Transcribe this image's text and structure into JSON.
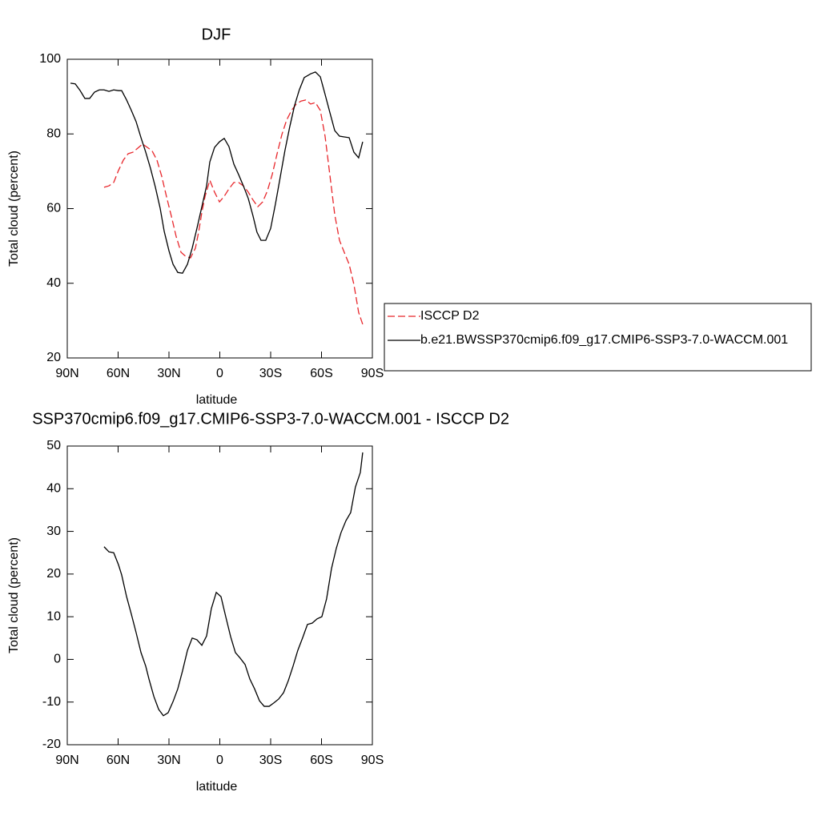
{
  "chart_data": [
    {
      "type": "line",
      "title": "DJF",
      "xlabel": "latitude",
      "ylabel": "Total cloud (percent)",
      "xlim": [
        90,
        -90
      ],
      "xticks": [
        {
          "value": 90,
          "label": "90N"
        },
        {
          "value": 60,
          "label": "60N"
        },
        {
          "value": 30,
          "label": "30N"
        },
        0,
        {
          "value": -30,
          "label": "30S"
        },
        {
          "value": -60,
          "label": "60S"
        },
        {
          "value": -90,
          "label": "90S"
        }
      ],
      "ylim": [
        20,
        100
      ],
      "yticks": [
        20,
        40,
        60,
        80,
        100
      ],
      "legend": "right",
      "series": [
        {
          "name": "ISCCP D2",
          "color": "#e8262b",
          "dashed": true,
          "x": [
            68.3,
            65.4,
            62.6,
            59.8,
            56.9,
            54.1,
            51.3,
            48.4,
            45.6,
            42.8,
            40.0,
            37.1,
            34.3,
            31.4,
            28.6,
            25.8,
            22.9,
            20.1,
            17.3,
            14.4,
            12.5,
            10.6,
            8.7,
            5.9,
            3.1,
            0.2,
            -2.6,
            -5.4,
            -8.3,
            -11.1,
            -13.9,
            -16.8,
            -19.6,
            -22.4,
            -25.3,
            -28.1,
            -30.9,
            -33.8,
            -36.6,
            -39.4,
            -42.3,
            -45.1,
            -47.9,
            -50.7,
            -53.6,
            -56.4,
            -59.3,
            -62.1,
            -64.9,
            -67.8,
            -70.6,
            -73.4,
            -76.3,
            -79.1,
            -81.9,
            -84.3
          ],
          "values": [
            65.7,
            66.1,
            67.0,
            70.2,
            73.0,
            74.7,
            75.1,
            76.2,
            77.3,
            76.4,
            75.5,
            73.0,
            68.7,
            63.1,
            58.0,
            52.6,
            48.3,
            47.2,
            46.8,
            49.4,
            53.7,
            59.0,
            63.3,
            67.6,
            64.4,
            61.8,
            63.3,
            65.3,
            67.0,
            67.0,
            66.1,
            64.4,
            62.3,
            60.5,
            61.8,
            64.8,
            69.1,
            74.7,
            79.8,
            83.7,
            86.3,
            88.0,
            88.8,
            89.1,
            88.0,
            88.4,
            86.3,
            79.4,
            69.1,
            58.4,
            51.5,
            48.3,
            45.1,
            39.7,
            32.2,
            29.0
          ]
        },
        {
          "name": "b.e21.BWSSP370cmip6.f09_g17.CMIP6-SSP3-7.0-WACCM.001",
          "color": "#000000",
          "dashed": false,
          "x": [
            88.1,
            85.3,
            82.4,
            79.6,
            76.8,
            73.9,
            71.1,
            68.3,
            65.4,
            62.6,
            59.8,
            57.9,
            55.0,
            52.2,
            49.4,
            46.5,
            43.7,
            40.9,
            38.0,
            35.2,
            32.8,
            30.0,
            27.6,
            24.8,
            22.0,
            19.1,
            16.3,
            13.5,
            10.6,
            7.8,
            5.9,
            3.1,
            0.2,
            -2.6,
            -5.4,
            -8.3,
            -11.1,
            -13.9,
            -16.8,
            -19.6,
            -21.9,
            -24.3,
            -27.1,
            -30.0,
            -32.8,
            -35.6,
            -38.4,
            -41.3,
            -44.1,
            -46.9,
            -49.8,
            -53.6,
            -56.4,
            -59.3,
            -62.1,
            -64.9,
            -67.8,
            -70.6,
            -73.4,
            -76.3,
            -79.1,
            -81.9,
            -84.3
          ],
          "values": [
            93.6,
            93.4,
            91.6,
            89.5,
            89.5,
            91.2,
            91.8,
            91.8,
            91.4,
            91.8,
            91.6,
            91.6,
            89.1,
            86.3,
            83.3,
            79.0,
            75.1,
            70.8,
            65.7,
            60.1,
            53.9,
            48.7,
            45.1,
            42.9,
            42.7,
            45.1,
            49.4,
            54.7,
            60.5,
            66.1,
            72.5,
            76.4,
            77.9,
            78.8,
            76.6,
            71.9,
            69.1,
            66.1,
            62.7,
            58.0,
            53.7,
            51.5,
            51.5,
            54.7,
            61.2,
            68.3,
            75.5,
            82.0,
            87.6,
            91.8,
            95.1,
            96.1,
            96.6,
            95.3,
            90.6,
            85.8,
            80.9,
            79.4,
            79.2,
            79.0,
            75.1,
            73.6,
            77.9
          ]
        }
      ]
    },
    {
      "type": "line",
      "title": "SSP370cmip6.f09_g17.CMIP6-SSP3-7.0-WACCM.001 - ISCCP D2",
      "xlabel": "latitude",
      "ylabel": "Total cloud (percent)",
      "xlim": [
        90,
        -90
      ],
      "xticks": [
        {
          "value": 90,
          "label": "90N"
        },
        {
          "value": 60,
          "label": "60N"
        },
        {
          "value": 30,
          "label": "30N"
        },
        0,
        {
          "value": -30,
          "label": "30S"
        },
        {
          "value": -60,
          "label": "60S"
        },
        {
          "value": -90,
          "label": "90S"
        }
      ],
      "ylim": [
        -20,
        50
      ],
      "yticks": [
        -20,
        -10,
        0,
        10,
        20,
        30,
        40,
        50
      ],
      "series": [
        {
          "color": "#000000",
          "dashed": false,
          "x": [
            68.3,
            65.4,
            62.6,
            59.8,
            57.9,
            55.0,
            52.2,
            49.4,
            46.5,
            43.7,
            41.8,
            38.9,
            36.1,
            33.3,
            30.5,
            27.6,
            24.8,
            22.0,
            19.1,
            16.3,
            13.5,
            10.6,
            7.8,
            5.0,
            2.1,
            -0.7,
            -3.5,
            -6.4,
            -9.2,
            -12.0,
            -14.9,
            -17.7,
            -20.5,
            -23.4,
            -26.2,
            -29.1,
            -31.9,
            -34.7,
            -37.6,
            -40.4,
            -43.2,
            -46.0,
            -48.9,
            -51.7,
            -54.5,
            -57.4,
            -60.2,
            -63.0,
            -65.9,
            -68.7,
            -71.5,
            -74.4,
            -77.2,
            -80.0,
            -82.9,
            -84.3
          ],
          "values": [
            26.4,
            25.2,
            25.0,
            22.2,
            19.8,
            14.7,
            10.6,
            6.3,
            1.6,
            -1.6,
            -4.6,
            -8.7,
            -11.7,
            -13.2,
            -12.5,
            -9.9,
            -6.9,
            -2.7,
            2.1,
            5.0,
            4.6,
            3.3,
            5.5,
            11.9,
            15.7,
            14.7,
            10.0,
            5.3,
            1.6,
            0.3,
            -1.2,
            -4.6,
            -6.9,
            -9.7,
            -11.0,
            -11.0,
            -10.2,
            -9.3,
            -7.8,
            -5.0,
            -1.6,
            2.1,
            5.1,
            8.2,
            8.5,
            9.5,
            10.0,
            14.2,
            21.3,
            26.0,
            29.7,
            32.5,
            34.4,
            40.4,
            43.8,
            48.5
          ]
        }
      ]
    }
  ]
}
